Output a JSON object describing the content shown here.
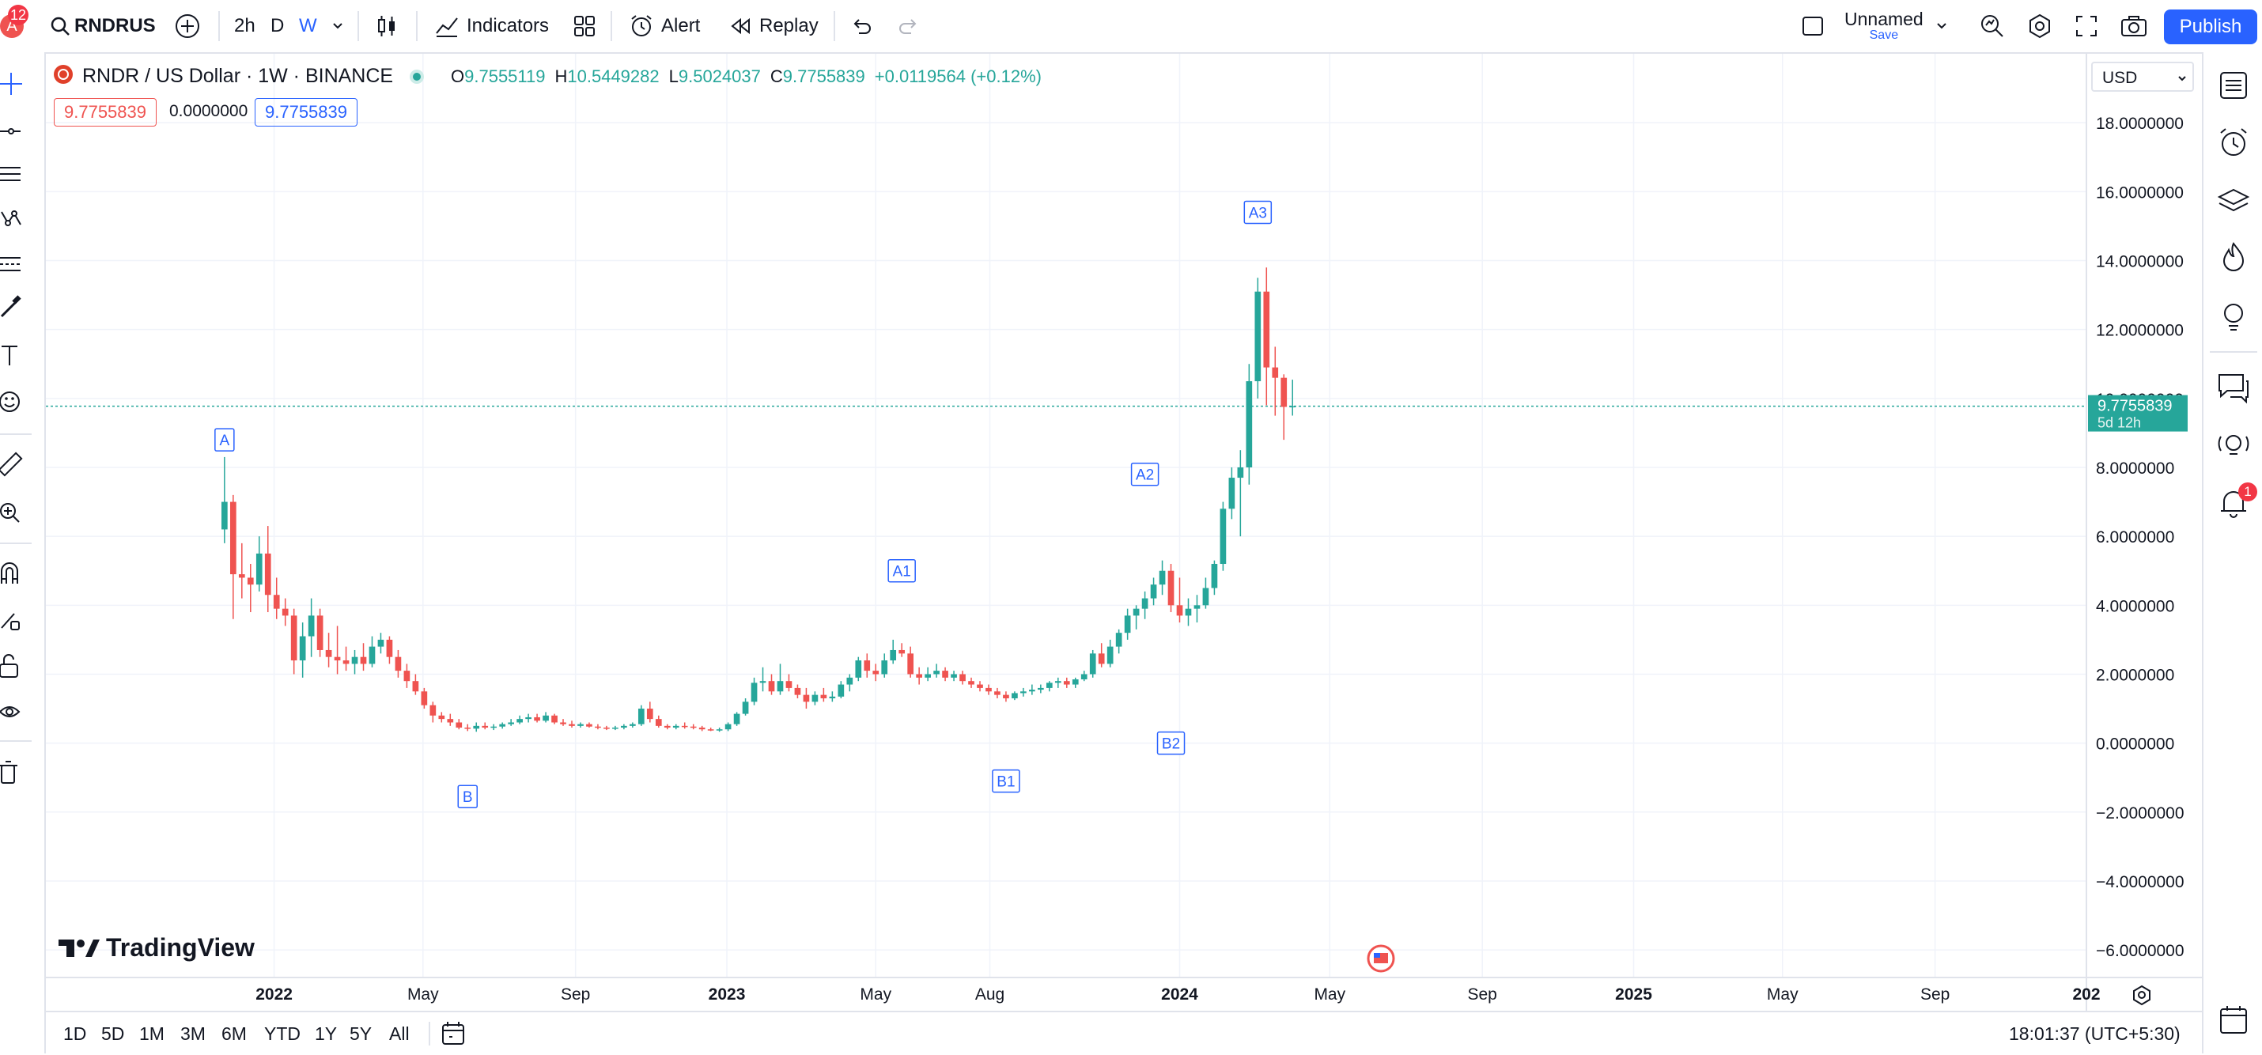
{
  "header": {
    "avatar_letter": "A",
    "notifications": "12",
    "symbol": "RNDRUS",
    "intervals": [
      "2h",
      "D",
      "W"
    ],
    "active_interval": "W",
    "indicators_label": "Indicators",
    "alert_label": "Alert",
    "replay_label": "Replay",
    "layout_name": "Unnamed",
    "save_label": "Save",
    "publish_label": "Publish"
  },
  "legend": {
    "title": "RNDR / US Dollar · 1W · BINANCE",
    "o_label": "O",
    "o_value": "9.7555119",
    "h_label": "H",
    "h_value": "10.5449282",
    "l_label": "L",
    "l_value": "9.5024037",
    "c_label": "C",
    "c_value": "9.7755839",
    "change": "+0.0119564 (+0.12%)",
    "bid": "9.7755839",
    "spread": "0.0000000",
    "ask": "9.7755839"
  },
  "currency": "USD",
  "price_tag": {
    "value": "9.7755839",
    "countdown": "5d 12h"
  },
  "alerts_count": "1",
  "watermark": "TradingView",
  "bottom": {
    "ranges": [
      "1D",
      "5D",
      "1M",
      "3M",
      "6M",
      "YTD",
      "1Y",
      "5Y",
      "All"
    ],
    "clock": "18:01:37 (UTC+5:30)"
  },
  "colors": {
    "up": "#26a69a",
    "down": "#ef5350",
    "accent": "#2962ff",
    "label": "#2962ff"
  },
  "chart_data": {
    "type": "candlestick",
    "ylim": [
      -6.8,
      20
    ],
    "y_ticks": [
      "18.0000000",
      "16.0000000",
      "14.0000000",
      "12.0000000",
      "10.0000000",
      "8.0000000",
      "6.0000000",
      "4.0000000",
      "2.0000000",
      "0.0000000",
      "−2.0000000",
      "−4.0000000",
      "−6.0000000"
    ],
    "y_tick_values": [
      18,
      16,
      14,
      12,
      10,
      8,
      6,
      4,
      2,
      0,
      -2,
      -4,
      -6
    ],
    "x_ticks": [
      "2022",
      "May",
      "Sep",
      "2023",
      "May",
      "Aug",
      "2024",
      "May",
      "Sep",
      "2025",
      "May",
      "Sep",
      "202"
    ],
    "x_tick_dates": [
      "2022-01-01",
      "2022-05-01",
      "2022-09-01",
      "2023-01-01",
      "2023-05-01",
      "2023-08-01",
      "2024-01-01",
      "2024-05-01",
      "2024-09-01",
      "2025-01-01",
      "2025-05-01",
      "2025-09-01",
      "2026-01-01"
    ],
    "x_range": [
      "2021-07-01",
      "2026-01-01"
    ],
    "last_price": 9.7755839,
    "candles": [
      {
        "t": "2021-11-22",
        "o": 6.2,
        "h": 8.3,
        "l": 5.8,
        "c": 7.0
      },
      {
        "t": "2021-11-29",
        "o": 7.0,
        "h": 7.2,
        "l": 3.6,
        "c": 4.9
      },
      {
        "t": "2021-12-06",
        "o": 4.9,
        "h": 5.8,
        "l": 4.2,
        "c": 4.8
      },
      {
        "t": "2021-12-13",
        "o": 4.8,
        "h": 5.2,
        "l": 3.8,
        "c": 4.6
      },
      {
        "t": "2021-12-20",
        "o": 4.6,
        "h": 6.0,
        "l": 4.4,
        "c": 5.5
      },
      {
        "t": "2021-12-27",
        "o": 5.5,
        "h": 6.3,
        "l": 3.8,
        "c": 4.3
      },
      {
        "t": "2022-01-03",
        "o": 4.3,
        "h": 4.8,
        "l": 3.6,
        "c": 3.9
      },
      {
        "t": "2022-01-10",
        "o": 3.9,
        "h": 4.2,
        "l": 3.4,
        "c": 3.7
      },
      {
        "t": "2022-01-17",
        "o": 3.7,
        "h": 3.9,
        "l": 2.0,
        "c": 2.4
      },
      {
        "t": "2022-01-24",
        "o": 2.4,
        "h": 3.5,
        "l": 1.9,
        "c": 3.1
      },
      {
        "t": "2022-01-31",
        "o": 3.1,
        "h": 4.2,
        "l": 2.5,
        "c": 3.7
      },
      {
        "t": "2022-02-07",
        "o": 3.7,
        "h": 3.9,
        "l": 2.5,
        "c": 2.7
      },
      {
        "t": "2022-02-14",
        "o": 2.7,
        "h": 3.2,
        "l": 2.2,
        "c": 2.5
      },
      {
        "t": "2022-02-21",
        "o": 2.5,
        "h": 3.4,
        "l": 2.0,
        "c": 2.4
      },
      {
        "t": "2022-02-28",
        "o": 2.4,
        "h": 2.8,
        "l": 2.1,
        "c": 2.3
      },
      {
        "t": "2022-03-07",
        "o": 2.3,
        "h": 2.7,
        "l": 2.0,
        "c": 2.5
      },
      {
        "t": "2022-03-14",
        "o": 2.5,
        "h": 2.9,
        "l": 2.1,
        "c": 2.3
      },
      {
        "t": "2022-03-21",
        "o": 2.3,
        "h": 3.1,
        "l": 2.2,
        "c": 2.8
      },
      {
        "t": "2022-03-28",
        "o": 2.8,
        "h": 3.2,
        "l": 2.6,
        "c": 3.0
      },
      {
        "t": "2022-04-04",
        "o": 3.0,
        "h": 3.1,
        "l": 2.3,
        "c": 2.5
      },
      {
        "t": "2022-04-11",
        "o": 2.5,
        "h": 2.7,
        "l": 1.9,
        "c": 2.1
      },
      {
        "t": "2022-04-18",
        "o": 2.1,
        "h": 2.3,
        "l": 1.6,
        "c": 1.8
      },
      {
        "t": "2022-04-25",
        "o": 1.8,
        "h": 2.0,
        "l": 1.4,
        "c": 1.5
      },
      {
        "t": "2022-05-02",
        "o": 1.5,
        "h": 1.6,
        "l": 1.0,
        "c": 1.1
      },
      {
        "t": "2022-05-09",
        "o": 1.1,
        "h": 1.2,
        "l": 0.6,
        "c": 0.8
      },
      {
        "t": "2022-05-16",
        "o": 0.8,
        "h": 0.9,
        "l": 0.6,
        "c": 0.7
      },
      {
        "t": "2022-05-23",
        "o": 0.7,
        "h": 0.85,
        "l": 0.5,
        "c": 0.6
      },
      {
        "t": "2022-05-30",
        "o": 0.6,
        "h": 0.7,
        "l": 0.4,
        "c": 0.45
      },
      {
        "t": "2022-06-06",
        "o": 0.45,
        "h": 0.55,
        "l": 0.35,
        "c": 0.42
      },
      {
        "t": "2022-06-13",
        "o": 0.42,
        "h": 0.6,
        "l": 0.33,
        "c": 0.5
      },
      {
        "t": "2022-06-20",
        "o": 0.5,
        "h": 0.6,
        "l": 0.4,
        "c": 0.45
      },
      {
        "t": "2022-06-27",
        "o": 0.45,
        "h": 0.55,
        "l": 0.38,
        "c": 0.48
      },
      {
        "t": "2022-07-04",
        "o": 0.48,
        "h": 0.6,
        "l": 0.42,
        "c": 0.55
      },
      {
        "t": "2022-07-11",
        "o": 0.55,
        "h": 0.7,
        "l": 0.5,
        "c": 0.6
      },
      {
        "t": "2022-07-18",
        "o": 0.6,
        "h": 0.8,
        "l": 0.55,
        "c": 0.7
      },
      {
        "t": "2022-07-25",
        "o": 0.7,
        "h": 0.85,
        "l": 0.6,
        "c": 0.75
      },
      {
        "t": "2022-08-01",
        "o": 0.75,
        "h": 0.85,
        "l": 0.6,
        "c": 0.65
      },
      {
        "t": "2022-08-08",
        "o": 0.65,
        "h": 0.9,
        "l": 0.6,
        "c": 0.8
      },
      {
        "t": "2022-08-15",
        "o": 0.8,
        "h": 0.85,
        "l": 0.55,
        "c": 0.6
      },
      {
        "t": "2022-08-22",
        "o": 0.6,
        "h": 0.7,
        "l": 0.5,
        "c": 0.55
      },
      {
        "t": "2022-08-29",
        "o": 0.55,
        "h": 0.65,
        "l": 0.45,
        "c": 0.5
      },
      {
        "t": "2022-09-05",
        "o": 0.5,
        "h": 0.6,
        "l": 0.45,
        "c": 0.55
      },
      {
        "t": "2022-09-12",
        "o": 0.55,
        "h": 0.6,
        "l": 0.45,
        "c": 0.48
      },
      {
        "t": "2022-09-19",
        "o": 0.48,
        "h": 0.55,
        "l": 0.4,
        "c": 0.45
      },
      {
        "t": "2022-09-26",
        "o": 0.45,
        "h": 0.5,
        "l": 0.38,
        "c": 0.42
      },
      {
        "t": "2022-10-03",
        "o": 0.42,
        "h": 0.5,
        "l": 0.38,
        "c": 0.45
      },
      {
        "t": "2022-10-10",
        "o": 0.45,
        "h": 0.55,
        "l": 0.4,
        "c": 0.5
      },
      {
        "t": "2022-10-17",
        "o": 0.5,
        "h": 0.6,
        "l": 0.45,
        "c": 0.55
      },
      {
        "t": "2022-10-24",
        "o": 0.55,
        "h": 1.1,
        "l": 0.5,
        "c": 1.0
      },
      {
        "t": "2022-10-31",
        "o": 1.0,
        "h": 1.2,
        "l": 0.6,
        "c": 0.7
      },
      {
        "t": "2022-11-07",
        "o": 0.7,
        "h": 0.8,
        "l": 0.45,
        "c": 0.5
      },
      {
        "t": "2022-11-14",
        "o": 0.5,
        "h": 0.55,
        "l": 0.4,
        "c": 0.45
      },
      {
        "t": "2022-11-21",
        "o": 0.45,
        "h": 0.55,
        "l": 0.4,
        "c": 0.5
      },
      {
        "t": "2022-11-28",
        "o": 0.5,
        "h": 0.6,
        "l": 0.42,
        "c": 0.48
      },
      {
        "t": "2022-12-05",
        "o": 0.48,
        "h": 0.55,
        "l": 0.4,
        "c": 0.45
      },
      {
        "t": "2022-12-12",
        "o": 0.45,
        "h": 0.5,
        "l": 0.35,
        "c": 0.4
      },
      {
        "t": "2022-12-19",
        "o": 0.4,
        "h": 0.45,
        "l": 0.35,
        "c": 0.38
      },
      {
        "t": "2022-12-26",
        "o": 0.38,
        "h": 0.45,
        "l": 0.33,
        "c": 0.4
      },
      {
        "t": "2023-01-02",
        "o": 0.4,
        "h": 0.6,
        "l": 0.35,
        "c": 0.55
      },
      {
        "t": "2023-01-09",
        "o": 0.55,
        "h": 0.9,
        "l": 0.5,
        "c": 0.85
      },
      {
        "t": "2023-01-16",
        "o": 0.85,
        "h": 1.3,
        "l": 0.8,
        "c": 1.2
      },
      {
        "t": "2023-01-23",
        "o": 1.2,
        "h": 1.9,
        "l": 1.1,
        "c": 1.75
      },
      {
        "t": "2023-01-30",
        "o": 1.75,
        "h": 2.2,
        "l": 1.5,
        "c": 1.8
      },
      {
        "t": "2023-02-06",
        "o": 1.8,
        "h": 2.0,
        "l": 1.4,
        "c": 1.5
      },
      {
        "t": "2023-02-13",
        "o": 1.5,
        "h": 2.3,
        "l": 1.4,
        "c": 1.8
      },
      {
        "t": "2023-02-20",
        "o": 1.8,
        "h": 2.0,
        "l": 1.5,
        "c": 1.6
      },
      {
        "t": "2023-02-27",
        "o": 1.6,
        "h": 1.7,
        "l": 1.3,
        "c": 1.4
      },
      {
        "t": "2023-03-06",
        "o": 1.4,
        "h": 1.6,
        "l": 1.0,
        "c": 1.2
      },
      {
        "t": "2023-03-13",
        "o": 1.2,
        "h": 1.5,
        "l": 1.1,
        "c": 1.4
      },
      {
        "t": "2023-03-20",
        "o": 1.4,
        "h": 1.6,
        "l": 1.2,
        "c": 1.3
      },
      {
        "t": "2023-03-27",
        "o": 1.3,
        "h": 1.5,
        "l": 1.2,
        "c": 1.35
      },
      {
        "t": "2023-04-03",
        "o": 1.35,
        "h": 1.8,
        "l": 1.3,
        "c": 1.7
      },
      {
        "t": "2023-04-10",
        "o": 1.7,
        "h": 2.0,
        "l": 1.5,
        "c": 1.9
      },
      {
        "t": "2023-04-17",
        "o": 1.9,
        "h": 2.5,
        "l": 1.8,
        "c": 2.4
      },
      {
        "t": "2023-04-24",
        "o": 2.4,
        "h": 2.6,
        "l": 1.9,
        "c": 2.1
      },
      {
        "t": "2023-05-01",
        "o": 2.1,
        "h": 2.3,
        "l": 1.8,
        "c": 2.0
      },
      {
        "t": "2023-05-08",
        "o": 2.0,
        "h": 2.6,
        "l": 1.9,
        "c": 2.4
      },
      {
        "t": "2023-05-15",
        "o": 2.4,
        "h": 3.0,
        "l": 2.3,
        "c": 2.7
      },
      {
        "t": "2023-05-22",
        "o": 2.7,
        "h": 2.9,
        "l": 2.5,
        "c": 2.6
      },
      {
        "t": "2023-05-29",
        "o": 2.6,
        "h": 2.8,
        "l": 1.9,
        "c": 2.0
      },
      {
        "t": "2023-06-05",
        "o": 2.0,
        "h": 2.2,
        "l": 1.7,
        "c": 1.9
      },
      {
        "t": "2023-06-12",
        "o": 1.9,
        "h": 2.2,
        "l": 1.8,
        "c": 2.0
      },
      {
        "t": "2023-06-19",
        "o": 2.0,
        "h": 2.3,
        "l": 1.9,
        "c": 2.1
      },
      {
        "t": "2023-06-26",
        "o": 2.1,
        "h": 2.2,
        "l": 1.8,
        "c": 1.9
      },
      {
        "t": "2023-07-03",
        "o": 1.9,
        "h": 2.1,
        "l": 1.8,
        "c": 2.0
      },
      {
        "t": "2023-07-10",
        "o": 2.0,
        "h": 2.1,
        "l": 1.7,
        "c": 1.8
      },
      {
        "t": "2023-07-17",
        "o": 1.8,
        "h": 1.9,
        "l": 1.6,
        "c": 1.7
      },
      {
        "t": "2023-07-24",
        "o": 1.7,
        "h": 1.8,
        "l": 1.5,
        "c": 1.6
      },
      {
        "t": "2023-07-31",
        "o": 1.6,
        "h": 1.7,
        "l": 1.4,
        "c": 1.5
      },
      {
        "t": "2023-08-07",
        "o": 1.5,
        "h": 1.6,
        "l": 1.3,
        "c": 1.4
      },
      {
        "t": "2023-08-14",
        "o": 1.4,
        "h": 1.5,
        "l": 1.2,
        "c": 1.3
      },
      {
        "t": "2023-08-21",
        "o": 1.3,
        "h": 1.5,
        "l": 1.25,
        "c": 1.45
      },
      {
        "t": "2023-08-28",
        "o": 1.45,
        "h": 1.6,
        "l": 1.35,
        "c": 1.5
      },
      {
        "t": "2023-09-04",
        "o": 1.5,
        "h": 1.7,
        "l": 1.4,
        "c": 1.55
      },
      {
        "t": "2023-09-11",
        "o": 1.55,
        "h": 1.7,
        "l": 1.45,
        "c": 1.6
      },
      {
        "t": "2023-09-18",
        "o": 1.6,
        "h": 1.8,
        "l": 1.5,
        "c": 1.75
      },
      {
        "t": "2023-09-25",
        "o": 1.75,
        "h": 1.9,
        "l": 1.6,
        "c": 1.8
      },
      {
        "t": "2023-10-02",
        "o": 1.8,
        "h": 1.9,
        "l": 1.6,
        "c": 1.7
      },
      {
        "t": "2023-10-09",
        "o": 1.7,
        "h": 1.9,
        "l": 1.6,
        "c": 1.85
      },
      {
        "t": "2023-10-16",
        "o": 1.85,
        "h": 2.1,
        "l": 1.8,
        "c": 2.0
      },
      {
        "t": "2023-10-23",
        "o": 2.0,
        "h": 2.7,
        "l": 1.9,
        "c": 2.6
      },
      {
        "t": "2023-10-30",
        "o": 2.6,
        "h": 2.9,
        "l": 2.2,
        "c": 2.3
      },
      {
        "t": "2023-11-06",
        "o": 2.3,
        "h": 3.0,
        "l": 2.2,
        "c": 2.8
      },
      {
        "t": "2023-11-13",
        "o": 2.8,
        "h": 3.3,
        "l": 2.6,
        "c": 3.2
      },
      {
        "t": "2023-11-20",
        "o": 3.2,
        "h": 3.9,
        "l": 3.0,
        "c": 3.7
      },
      {
        "t": "2023-11-27",
        "o": 3.7,
        "h": 4.0,
        "l": 3.3,
        "c": 3.9
      },
      {
        "t": "2023-12-04",
        "o": 3.9,
        "h": 4.4,
        "l": 3.6,
        "c": 4.2
      },
      {
        "t": "2023-12-11",
        "o": 4.2,
        "h": 4.8,
        "l": 4.0,
        "c": 4.6
      },
      {
        "t": "2023-12-18",
        "o": 4.6,
        "h": 5.3,
        "l": 4.3,
        "c": 5.0
      },
      {
        "t": "2023-12-25",
        "o": 5.0,
        "h": 5.2,
        "l": 3.8,
        "c": 4.0
      },
      {
        "t": "2024-01-01",
        "o": 4.0,
        "h": 4.8,
        "l": 3.5,
        "c": 3.7
      },
      {
        "t": "2024-01-08",
        "o": 3.7,
        "h": 4.2,
        "l": 3.4,
        "c": 3.9
      },
      {
        "t": "2024-01-15",
        "o": 3.9,
        "h": 4.3,
        "l": 3.5,
        "c": 4.0
      },
      {
        "t": "2024-01-22",
        "o": 4.0,
        "h": 4.8,
        "l": 3.9,
        "c": 4.5
      },
      {
        "t": "2024-01-29",
        "o": 4.5,
        "h": 5.3,
        "l": 4.3,
        "c": 5.2
      },
      {
        "t": "2024-02-05",
        "o": 5.2,
        "h": 7.0,
        "l": 5.0,
        "c": 6.8
      },
      {
        "t": "2024-02-12",
        "o": 6.8,
        "h": 8.0,
        "l": 6.5,
        "c": 7.7
      },
      {
        "t": "2024-02-19",
        "o": 7.7,
        "h": 8.5,
        "l": 6.0,
        "c": 8.0
      },
      {
        "t": "2024-02-26",
        "o": 8.0,
        "h": 11.0,
        "l": 7.5,
        "c": 10.5
      },
      {
        "t": "2024-03-04",
        "o": 10.5,
        "h": 13.5,
        "l": 10.0,
        "c": 13.1
      },
      {
        "t": "2024-03-11",
        "o": 13.1,
        "h": 13.8,
        "l": 9.8,
        "c": 10.9
      },
      {
        "t": "2024-03-18",
        "o": 10.9,
        "h": 11.5,
        "l": 9.5,
        "c": 10.6
      },
      {
        "t": "2024-03-25",
        "o": 10.6,
        "h": 10.7,
        "l": 8.8,
        "c": 9.7555119
      },
      {
        "t": "2024-04-01",
        "o": 9.7555119,
        "h": 10.5449282,
        "l": 9.5024037,
        "c": 9.7755839
      }
    ],
    "annotations": [
      {
        "text": "A",
        "t": "2021-11-22",
        "y": 8.8
      },
      {
        "text": "B",
        "t": "2022-06-06",
        "y": -1.55
      },
      {
        "text": "A1",
        "t": "2023-05-22",
        "y": 5.0
      },
      {
        "text": "B1",
        "t": "2023-08-14",
        "y": -1.1
      },
      {
        "text": "A2",
        "t": "2023-12-04",
        "y": 7.8
      },
      {
        "text": "B2",
        "t": "2023-12-25",
        "y": 0.0
      },
      {
        "text": "A3",
        "t": "2024-03-04",
        "y": 15.4
      }
    ]
  }
}
